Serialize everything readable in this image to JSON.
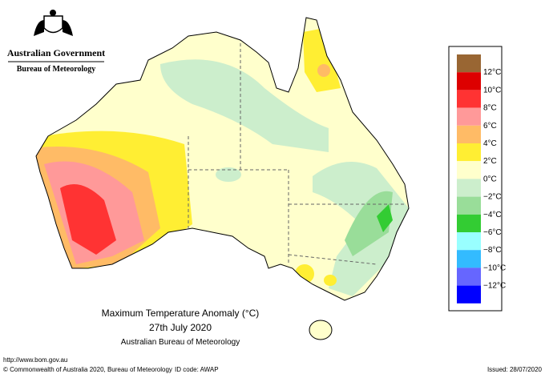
{
  "header": {
    "government": "Australian Government",
    "agency": "Bureau of Meteorology"
  },
  "title": {
    "line1": "Maximum Temperature Anomaly (°C)",
    "line2": "27th July 2020",
    "line3": "Australian Bureau of Meteorology"
  },
  "legend": {
    "colors": [
      "#996633",
      "#dd0000",
      "#ff3333",
      "#ff9999",
      "#ffbb66",
      "#ffee33",
      "#ffffcc",
      "#cceecc",
      "#99dd99",
      "#33cc33",
      "#99ffff",
      "#33bbff",
      "#6666ff",
      "#0000ff"
    ],
    "labels": [
      "12°C",
      "10°C",
      "8°C",
      "6°C",
      "4°C",
      "2°C",
      "0°C",
      "−2°C",
      "−4°C",
      "−6°C",
      "−8°C",
      "−10°C",
      "−12°C"
    ]
  },
  "footer": {
    "url": "http://www.bom.gov.au",
    "copyright": "© Commonwealth of Australia 2020, Bureau of Meteorology",
    "id_code": "ID code: AWAP",
    "issued": "Issued: 28/07/2020"
  }
}
